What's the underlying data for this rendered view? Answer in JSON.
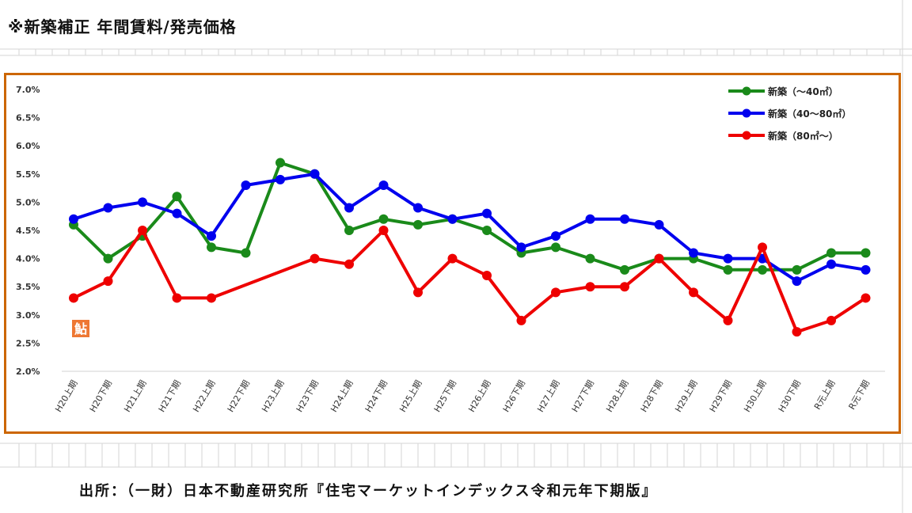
{
  "title": "※新築補正 年間賃料/発売価格",
  "source": "出所：（一財）日本不動産研究所『住宅マーケットインデックス令和元年下期版』",
  "badge_text": "鮎",
  "chart_data": {
    "type": "line",
    "categories": [
      "H20上期",
      "H20下期",
      "H21上期",
      "H21下期",
      "H22上期",
      "H22下期",
      "H23上期",
      "H23下期",
      "H24上期",
      "H24下期",
      "H25上期",
      "H25下期",
      "H26上期",
      "H26下期",
      "H27上期",
      "H27下期",
      "H28上期",
      "H28下期",
      "H29上期",
      "H29下期",
      "H30上期",
      "H30下期",
      "R元上期",
      "R元下期"
    ],
    "ylim": [
      2.0,
      7.0
    ],
    "yticks": [
      "2.0%",
      "2.5%",
      "3.0%",
      "3.5%",
      "4.0%",
      "4.5%",
      "5.0%",
      "5.5%",
      "6.0%",
      "6.5%",
      "7.0%"
    ],
    "legend_position": "top-right",
    "grid": "horizontal-baseline",
    "series": [
      {
        "name": "新築（～40㎡）",
        "color": "#1a8a1a",
        "values": [
          4.6,
          4.0,
          4.4,
          5.1,
          4.2,
          4.1,
          5.7,
          5.5,
          4.5,
          4.7,
          4.6,
          4.7,
          4.5,
          4.1,
          4.2,
          4.0,
          3.8,
          4.0,
          4.0,
          3.8,
          3.8,
          3.8,
          4.1,
          4.1
        ]
      },
      {
        "name": "新築（40～80㎡）",
        "color": "#0000ee",
        "values": [
          4.7,
          4.9,
          5.0,
          4.8,
          4.4,
          5.3,
          5.4,
          5.5,
          4.9,
          5.3,
          4.9,
          4.7,
          4.8,
          4.2,
          4.4,
          4.7,
          4.7,
          4.6,
          4.1,
          4.0,
          4.0,
          3.6,
          3.9,
          3.8
        ]
      },
      {
        "name": "新築（80㎡～）",
        "color": "#ee0000",
        "values": [
          3.3,
          3.6,
          4.5,
          3.3,
          3.3,
          null,
          null,
          4.0,
          3.9,
          4.5,
          3.4,
          4.0,
          3.7,
          2.9,
          3.4,
          3.5,
          3.5,
          4.0,
          3.4,
          2.9,
          4.2,
          2.7,
          2.9,
          3.3
        ]
      }
    ]
  }
}
